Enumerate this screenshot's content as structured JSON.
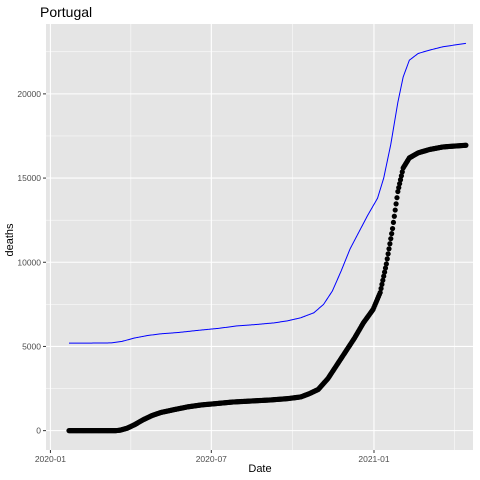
{
  "chart_data": {
    "type": "line",
    "title": "Portugal",
    "xlabel": "Date",
    "ylabel": "deaths",
    "x_tick_labels": [
      "2020-01",
      "2020-07",
      "2021-01"
    ],
    "x_tick_dates": [
      "2020-01-01",
      "2020-07-01",
      "2021-01-01"
    ],
    "y_ticks": [
      0,
      5000,
      10000,
      15000,
      20000
    ],
    "y_tick_labels": [
      "0",
      "5000",
      "10000",
      "15000",
      "20000"
    ],
    "xlim": [
      "2019-12-27",
      "2021-04-23"
    ],
    "ylim": [
      -1150,
      24150
    ],
    "grid": true,
    "colors": {
      "panel": "#e5e5e5",
      "grid": "#ffffff",
      "points": "#000000",
      "line": "#0000ff"
    },
    "series": [
      {
        "type": "line",
        "color": "#0000ff",
        "points": [
          [
            "2020-01-22",
            5200
          ],
          [
            "2020-02-15",
            5200
          ],
          [
            "2020-03-10",
            5210
          ],
          [
            "2020-03-22",
            5300
          ],
          [
            "2020-04-05",
            5500
          ],
          [
            "2020-04-20",
            5650
          ],
          [
            "2020-05-05",
            5750
          ],
          [
            "2020-05-25",
            5830
          ],
          [
            "2020-06-15",
            5950
          ],
          [
            "2020-07-10",
            6080
          ],
          [
            "2020-07-30",
            6220
          ],
          [
            "2020-08-20",
            6300
          ],
          [
            "2020-09-10",
            6400
          ],
          [
            "2020-09-25",
            6520
          ],
          [
            "2020-10-10",
            6700
          ],
          [
            "2020-10-25",
            7000
          ],
          [
            "2020-11-05",
            7500
          ],
          [
            "2020-11-15",
            8300
          ],
          [
            "2020-11-25",
            9500
          ],
          [
            "2020-12-05",
            10800
          ],
          [
            "2020-12-15",
            11800
          ],
          [
            "2020-12-25",
            12800
          ],
          [
            "2021-01-05",
            13800
          ],
          [
            "2021-01-12",
            15000
          ],
          [
            "2021-01-20",
            17000
          ],
          [
            "2021-01-28",
            19500
          ],
          [
            "2021-02-03",
            21000
          ],
          [
            "2021-02-10",
            22000
          ],
          [
            "2021-02-20",
            22400
          ],
          [
            "2021-03-05",
            22600
          ],
          [
            "2021-03-20",
            22800
          ],
          [
            "2021-04-15",
            23000
          ]
        ]
      },
      {
        "type": "scatter",
        "color": "#000000",
        "points": [
          [
            "2020-01-22",
            0
          ],
          [
            "2020-03-15",
            0
          ],
          [
            "2020-03-20",
            30
          ],
          [
            "2020-03-28",
            150
          ],
          [
            "2020-04-05",
            350
          ],
          [
            "2020-04-15",
            650
          ],
          [
            "2020-04-25",
            900
          ],
          [
            "2020-05-05",
            1080
          ],
          [
            "2020-05-20",
            1250
          ],
          [
            "2020-06-05",
            1420
          ],
          [
            "2020-06-20",
            1530
          ],
          [
            "2020-07-05",
            1600
          ],
          [
            "2020-07-25",
            1700
          ],
          [
            "2020-08-15",
            1760
          ],
          [
            "2020-09-05",
            1820
          ],
          [
            "2020-09-25",
            1900
          ],
          [
            "2020-10-10",
            2000
          ],
          [
            "2020-10-20",
            2200
          ],
          [
            "2020-10-30",
            2450
          ],
          [
            "2020-11-10",
            3100
          ],
          [
            "2020-11-20",
            3900
          ],
          [
            "2020-11-30",
            4700
          ],
          [
            "2020-12-10",
            5500
          ],
          [
            "2020-12-20",
            6400
          ],
          [
            "2020-12-31",
            7200
          ],
          [
            "2021-01-08",
            8200
          ],
          [
            "2021-01-15",
            9900
          ],
          [
            "2021-01-22",
            12000
          ],
          [
            "2021-01-28",
            14200
          ],
          [
            "2021-02-03",
            15600
          ],
          [
            "2021-02-10",
            16200
          ],
          [
            "2021-02-20",
            16500
          ],
          [
            "2021-03-05",
            16700
          ],
          [
            "2021-03-20",
            16850
          ],
          [
            "2021-04-15",
            16950
          ]
        ]
      }
    ]
  }
}
